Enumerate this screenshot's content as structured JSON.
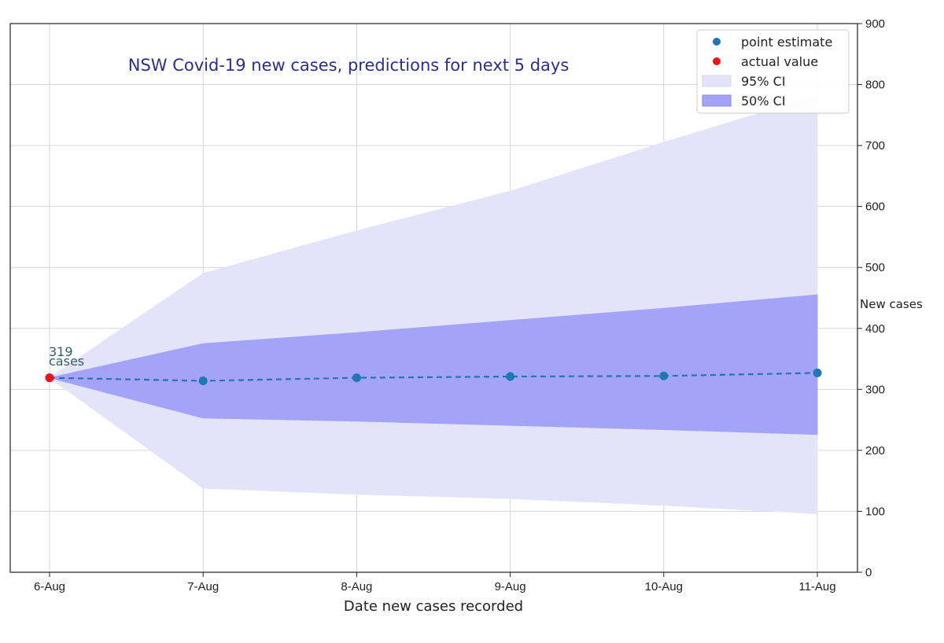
{
  "chart_data": {
    "type": "line",
    "title": "NSW Covid-19 new cases, predictions for next 5 days",
    "xlabel": "Date new cases recorded",
    "ylabel": "New cases",
    "categories": [
      "6-Aug",
      "7-Aug",
      "8-Aug",
      "9-Aug",
      "10-Aug",
      "11-Aug"
    ],
    "ylim": [
      0,
      900
    ],
    "yticks": [
      0,
      100,
      200,
      300,
      400,
      500,
      600,
      700,
      800,
      900
    ],
    "y_axis_side": "right",
    "grid": true,
    "legend_position": "top-right",
    "series": [
      {
        "name": "point estimate",
        "kind": "line-points",
        "values": [
          319,
          314,
          319,
          321,
          322,
          327
        ],
        "color": "#1f77b4"
      },
      {
        "name": "actual value",
        "kind": "point",
        "index": 0,
        "value": 319,
        "color": "#e8141e"
      },
      {
        "name": "95% CI",
        "kind": "band",
        "lower": [
          319,
          138,
          128,
          121,
          110,
          96
        ],
        "upper": [
          319,
          490,
          560,
          625,
          705,
          782
        ],
        "color": "#e3e3fa"
      },
      {
        "name": "50% CI",
        "kind": "band",
        "lower": [
          319,
          253,
          248,
          241,
          234,
          226
        ],
        "upper": [
          319,
          375,
          393,
          413,
          433,
          455
        ],
        "color": "#a3a3fa"
      }
    ],
    "annotations": [
      {
        "index": 0,
        "line1": "319",
        "line2": "cases"
      }
    ]
  }
}
